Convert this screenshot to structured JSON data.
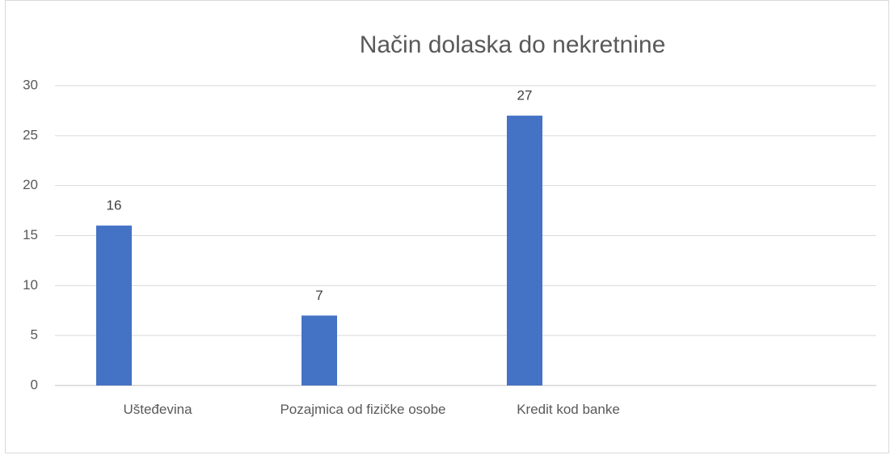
{
  "chart_data": {
    "type": "bar",
    "title": "Način dolaska do nekretnine",
    "categories": [
      "Uštеđevina",
      "Pozajmica od fizičke osobe",
      "Kredit kod banke",
      null
    ],
    "values": [
      16,
      7,
      27,
      null
    ],
    "color": "#4472c4",
    "ylim": [
      0,
      30
    ],
    "yticks": [
      0,
      5,
      10,
      15,
      20,
      25,
      30
    ],
    "grid": true,
    "data_labels": true
  }
}
